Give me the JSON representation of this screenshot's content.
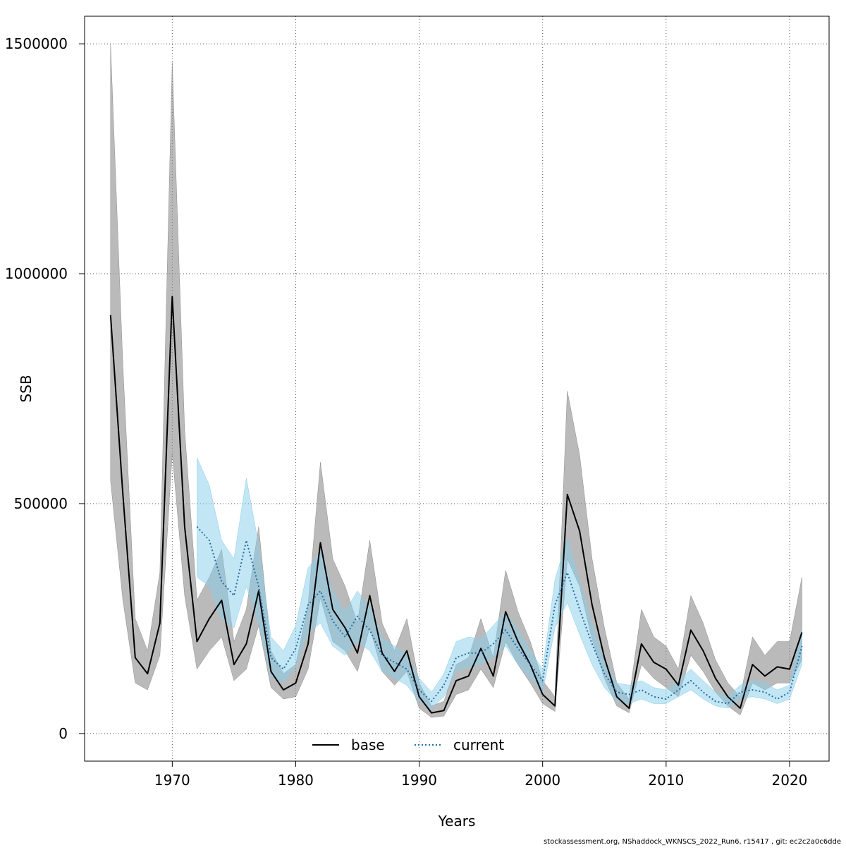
{
  "chart_data": {
    "type": "line",
    "title": "",
    "xlabel": "Years",
    "ylabel": "SSB",
    "xlim": [
      1962.9,
      2023.2
    ],
    "ylim": [
      -60000,
      1560000
    ],
    "xticks": [
      1970,
      1980,
      1990,
      2000,
      2010,
      2020
    ],
    "yticks": [
      0,
      500000,
      1000000,
      1500000
    ],
    "grid": true,
    "legend": {
      "position": "bottom-center",
      "entries": [
        "base",
        "current"
      ]
    },
    "series": [
      {
        "name": "base",
        "line_style": "solid",
        "color": "#000000",
        "band_color": "#8c8c8c",
        "x": [
          1965,
          1966,
          1967,
          1968,
          1969,
          1970,
          1971,
          1972,
          1973,
          1974,
          1975,
          1976,
          1977,
          1978,
          1979,
          1980,
          1981,
          1982,
          1983,
          1984,
          1985,
          1986,
          1987,
          1988,
          1989,
          1990,
          1991,
          1992,
          1993,
          1994,
          1995,
          1996,
          1997,
          1998,
          1999,
          2000,
          2001,
          2002,
          2003,
          2004,
          2005,
          2006,
          2007,
          2008,
          2009,
          2010,
          2011,
          2012,
          2013,
          2014,
          2015,
          2016,
          2017,
          2018,
          2019,
          2020,
          2021
        ],
        "y": [
          910000,
          520000,
          165000,
          130000,
          240000,
          950000,
          450000,
          200000,
          250000,
          290000,
          150000,
          195000,
          310000,
          135000,
          95000,
          110000,
          195000,
          415000,
          270000,
          230000,
          175000,
          300000,
          175000,
          135000,
          180000,
          80000,
          45000,
          50000,
          115000,
          125000,
          185000,
          125000,
          265000,
          200000,
          150000,
          85000,
          60000,
          520000,
          440000,
          280000,
          165000,
          80000,
          55000,
          195000,
          155000,
          140000,
          105000,
          225000,
          180000,
          120000,
          80000,
          55000,
          150000,
          125000,
          145000,
          140000,
          220000
        ],
        "lower": [
          550000,
          290000,
          110000,
          95000,
          170000,
          610000,
          300000,
          140000,
          180000,
          210000,
          115000,
          140000,
          235000,
          100000,
          75000,
          80000,
          140000,
          295000,
          200000,
          180000,
          135000,
          230000,
          135000,
          105000,
          135000,
          55000,
          35000,
          38000,
          85000,
          95000,
          140000,
          100000,
          200000,
          150000,
          110000,
          65000,
          48000,
          380000,
          320000,
          205000,
          120000,
          60000,
          45000,
          150000,
          120000,
          100000,
          80000,
          170000,
          135000,
          90000,
          60000,
          40000,
          110000,
          95000,
          110000,
          110000,
          160000
        ],
        "upper": [
          1500000,
          800000,
          250000,
          180000,
          350000,
          1460000,
          660000,
          290000,
          340000,
          400000,
          200000,
          270000,
          450000,
          180000,
          130000,
          150000,
          280000,
          590000,
          380000,
          320000,
          240000,
          420000,
          240000,
          180000,
          250000,
          110000,
          60000,
          70000,
          150000,
          165000,
          250000,
          165000,
          355000,
          265000,
          200000,
          115000,
          80000,
          745000,
          605000,
          380000,
          230000,
          110000,
          75000,
          270000,
          210000,
          190000,
          140000,
          300000,
          240000,
          160000,
          110000,
          80000,
          210000,
          170000,
          200000,
          200000,
          340000
        ]
      },
      {
        "name": "current",
        "line_style": "dotted",
        "color": "#1f6ea6",
        "band_color": "#87ceeb",
        "x": [
          1972,
          1973,
          1974,
          1975,
          1976,
          1977,
          1978,
          1979,
          1980,
          1981,
          1982,
          1983,
          1984,
          1985,
          1986,
          1987,
          1988,
          1989,
          1990,
          1991,
          1992,
          1993,
          1994,
          1995,
          1996,
          1997,
          1998,
          1999,
          2000,
          2001,
          2002,
          2003,
          2004,
          2005,
          2006,
          2007,
          2008,
          2009,
          2010,
          2011,
          2012,
          2013,
          2014,
          2015,
          2016,
          2017,
          2018,
          2019,
          2020,
          2021
        ],
        "y": [
          450000,
          420000,
          330000,
          300000,
          420000,
          320000,
          165000,
          140000,
          185000,
          280000,
          310000,
          245000,
          210000,
          255000,
          225000,
          170000,
          155000,
          140000,
          95000,
          70000,
          105000,
          165000,
          175000,
          175000,
          195000,
          225000,
          185000,
          150000,
          115000,
          280000,
          350000,
          270000,
          195000,
          130000,
          90000,
          85000,
          95000,
          80000,
          75000,
          95000,
          115000,
          90000,
          70000,
          65000,
          90000,
          95000,
          90000,
          75000,
          90000,
          190000
        ],
        "lower": [
          340000,
          320000,
          250000,
          230000,
          320000,
          240000,
          125000,
          110000,
          145000,
          220000,
          240000,
          190000,
          170000,
          200000,
          180000,
          135000,
          120000,
          105000,
          70000,
          55000,
          80000,
          135000,
          145000,
          150000,
          165000,
          190000,
          150000,
          120000,
          90000,
          230000,
          285000,
          215000,
          150000,
          100000,
          70000,
          65000,
          75000,
          65000,
          65000,
          80000,
          95000,
          75000,
          60000,
          55000,
          75000,
          80000,
          75000,
          65000,
          75000,
          150000
        ],
        "upper": [
          600000,
          540000,
          420000,
          380000,
          555000,
          410000,
          210000,
          180000,
          235000,
          360000,
          395000,
          310000,
          265000,
          310000,
          275000,
          210000,
          190000,
          170000,
          120000,
          90000,
          130000,
          200000,
          210000,
          205000,
          235000,
          265000,
          225000,
          180000,
          140000,
          335000,
          425000,
          330000,
          240000,
          160000,
          110000,
          105000,
          115000,
          100000,
          95000,
          115000,
          140000,
          115000,
          90000,
          80000,
          105000,
          115000,
          110000,
          95000,
          105000,
          230000
        ]
      }
    ]
  },
  "footer": "stockassessment.org, NShaddock_WKNSCS_2022_Run6, r15417 , git: ec2c2a0c6dde"
}
